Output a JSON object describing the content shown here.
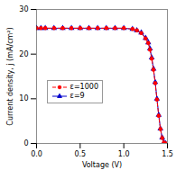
{
  "chart_data": {
    "type": "line",
    "xlabel": "Voltage (V)",
    "ylabel": "Current density, j (mA/cm²)",
    "x": [
      0.0,
      0.05,
      0.1,
      0.2,
      0.3,
      0.4,
      0.5,
      0.6,
      0.7,
      0.8,
      0.9,
      1.0,
      1.1,
      1.15,
      1.2,
      1.25,
      1.28,
      1.3,
      1.32,
      1.34,
      1.36,
      1.38,
      1.4,
      1.42,
      1.44,
      1.46,
      1.48
    ],
    "series": [
      {
        "name": "ε=1000",
        "color": "#ff0000",
        "marker": "circle",
        "line_style": "dashed",
        "values": [
          25.8,
          25.8,
          25.8,
          25.8,
          25.8,
          25.8,
          25.8,
          25.8,
          25.8,
          25.8,
          25.8,
          25.8,
          25.6,
          25.3,
          24.7,
          23.5,
          22.5,
          21.0,
          19.0,
          16.5,
          13.5,
          9.8,
          6.2,
          3.2,
          1.2,
          0.2,
          0.0
        ]
      },
      {
        "name": "ε=9",
        "color": "#0000cc",
        "marker": "triangle",
        "line_style": "solid",
        "values": [
          25.8,
          25.8,
          25.8,
          25.8,
          25.8,
          25.8,
          25.8,
          25.8,
          25.8,
          25.8,
          25.8,
          25.8,
          25.6,
          25.3,
          24.8,
          23.6,
          22.6,
          21.2,
          19.2,
          16.7,
          13.7,
          10.0,
          6.4,
          3.3,
          1.3,
          0.2,
          0.0
        ]
      }
    ],
    "xlim": [
      0.0,
      1.5
    ],
    "ylim": [
      0,
      30
    ],
    "xticks": [
      {
        "value": 0.0,
        "label": "0.0"
      },
      {
        "value": 0.5,
        "label": "0.5"
      },
      {
        "value": 1.0,
        "label": "1.0"
      },
      {
        "value": 1.5,
        "label": "1.5"
      }
    ],
    "yticks": [
      0,
      10,
      20,
      30
    ],
    "grid": false,
    "legend": "left"
  }
}
